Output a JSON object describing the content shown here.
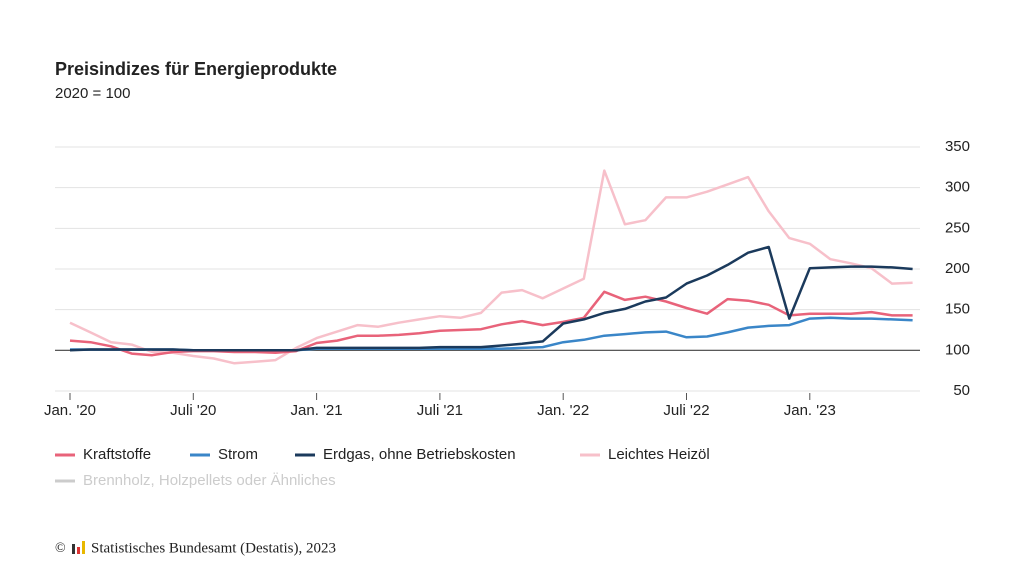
{
  "chart_data": {
    "type": "line",
    "title": "Preisindizes für Energieprodukte",
    "subtitle": "2020 = 100",
    "categories": [
      "Jan. '20",
      null,
      null,
      null,
      null,
      null,
      "Juli '20",
      null,
      null,
      null,
      null,
      null,
      "Jan. '21",
      null,
      null,
      null,
      null,
      null,
      "Juli '21",
      null,
      null,
      null,
      null,
      null,
      "Jan. '22",
      null,
      null,
      null,
      null,
      null,
      "Juli '22",
      null,
      null,
      null,
      null,
      null,
      "Jan. '23",
      null,
      null,
      null,
      null,
      null
    ],
    "series": [
      {
        "name": "Kraftstoffe",
        "color": "#e8637a",
        "values": [
          112,
          110,
          105,
          96,
          94,
          98,
          99,
          99,
          98,
          98,
          97,
          99,
          109,
          112,
          118,
          118,
          119,
          121,
          124,
          125,
          126,
          132,
          136,
          131,
          135,
          140,
          172,
          162,
          166,
          160,
          152,
          145,
          163,
          161,
          156,
          143,
          145,
          145,
          145,
          147,
          143,
          143
        ]
      },
      {
        "name": "Strom",
        "color": "#3a86c8",
        "values": [
          101,
          101,
          101,
          101,
          101,
          101,
          100,
          100,
          100,
          100,
          100,
          100,
          102,
          102,
          102,
          102,
          102,
          102,
          102,
          102,
          102,
          102,
          103,
          104,
          110,
          113,
          118,
          120,
          122,
          123,
          116,
          117,
          122,
          128,
          130,
          131,
          139,
          140,
          139,
          139,
          138,
          137
        ]
      },
      {
        "name": "Erdgas, ohne Betriebskosten",
        "color": "#1b3a5c",
        "values": [
          100,
          101,
          101,
          101,
          101,
          101,
          100,
          100,
          100,
          100,
          100,
          100,
          103,
          103,
          103,
          103,
          103,
          103,
          104,
          104,
          104,
          106,
          108,
          111,
          133,
          138,
          146,
          151,
          160,
          165,
          182,
          192,
          205,
          220,
          227,
          139,
          201,
          202,
          203,
          203,
          202,
          200
        ]
      },
      {
        "name": "Leichtes Heizöl",
        "color": "#f7c0ca",
        "values": [
          134,
          122,
          110,
          107,
          98,
          97,
          93,
          90,
          84,
          86,
          88,
          103,
          115,
          123,
          131,
          129,
          134,
          138,
          142,
          140,
          146,
          171,
          174,
          164,
          176,
          188,
          321,
          255,
          260,
          288,
          288,
          295,
          304,
          313,
          271,
          238,
          231,
          212,
          207,
          201,
          182,
          183
        ]
      }
    ],
    "inactive_series": [
      {
        "name": "Brennholz, Holzpellets oder Ähnliches",
        "color": "#cccccc"
      }
    ],
    "ylim": [
      50,
      350
    ],
    "yticks": [
      50,
      100,
      150,
      200,
      250,
      300,
      350
    ],
    "baseline": 100,
    "grid": true,
    "source": "Statistisches Bundesamt (Destatis), 2023"
  }
}
